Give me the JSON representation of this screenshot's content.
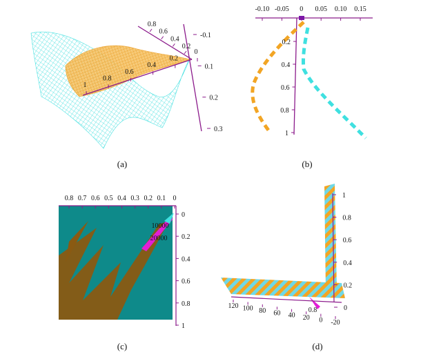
{
  "figure": {
    "captions": [
      "(a)",
      "(b)",
      "(c)",
      "(d)"
    ]
  },
  "colors": {
    "axis": "#8b1a8b",
    "orange": "#f2a524",
    "cyan": "#3fe0e0",
    "teal": "#0e8a8a",
    "brown": "#8a5a12",
    "magenta": "#e21ed6"
  },
  "panel_a": {
    "axis1_ticks": [
      "0.8",
      "0.6",
      "0.4",
      "0.2"
    ],
    "axis2_ticks": [
      "1",
      "0.8",
      "0.6",
      "0.4",
      "0.2",
      "0"
    ],
    "axis3_ticks": [
      "-0.1",
      "0.1",
      "0.2",
      "0.3"
    ]
  },
  "panel_b": {
    "top_ticks": [
      "-0.10",
      "-0.05",
      "0",
      "0.05",
      "0.10",
      "0.15"
    ],
    "left_ticks": [
      "0.2",
      "0.4",
      "0.6",
      "0.8",
      "1"
    ]
  },
  "panel_c": {
    "top_ticks": [
      "0.8",
      "0.7",
      "0.6",
      "0.5",
      "0.4",
      "0.3",
      "0.2",
      "0.1",
      "0"
    ],
    "right_ticks": [
      "0",
      "0.2",
      "0.4",
      "0.6",
      "0.8",
      "1"
    ],
    "mid_labels": [
      "10000",
      "20000"
    ]
  },
  "panel_d": {
    "bottom_ticks": [
      "120",
      "100",
      "80",
      "60",
      "40",
      "20",
      "0",
      "-20"
    ],
    "right_ticks": [
      "1",
      "0.8",
      "0.6",
      "0.4",
      "0.2",
      "0"
    ],
    "bottom_near_label": "0.8"
  }
}
